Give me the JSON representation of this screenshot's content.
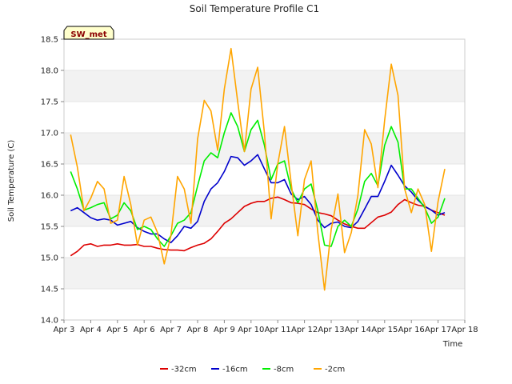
{
  "chart_data": {
    "type": "line",
    "title": "Soil Temperature Profile C1",
    "xlabel": "Time",
    "ylabel": "Soil Temperature (C)",
    "badge": "SW_met",
    "xlim": [
      3,
      18
    ],
    "ylim": [
      14.0,
      18.5
    ],
    "x_ticks": [
      3,
      4,
      5,
      6,
      7,
      8,
      9,
      10,
      11,
      12,
      13,
      14,
      15,
      16,
      17,
      18
    ],
    "x_tick_labels": [
      "Apr 3",
      "Apr 4",
      "Apr 5",
      "Apr 6",
      "Apr 7",
      "Apr 8",
      "Apr 9",
      "Apr 10",
      "Apr 11",
      "Apr 12",
      "Apr 13",
      "Apr 14",
      "Apr 15",
      "Apr 16",
      "Apr 17",
      "Apr 18"
    ],
    "y_ticks": [
      14.0,
      14.5,
      15.0,
      15.5,
      16.0,
      16.5,
      17.0,
      17.5,
      18.0,
      18.5
    ],
    "y_tick_labels": [
      "14.0",
      "14.5",
      "15.0",
      "15.5",
      "16.0",
      "16.5",
      "17.0",
      "17.5",
      "18.0",
      "18.5"
    ],
    "grid": true,
    "legend_position": "bottom",
    "series": [
      {
        "name": "-32cm",
        "color": "#dd0000",
        "points": [
          [
            3.25,
            15.03
          ],
          [
            3.5,
            15.1
          ],
          [
            3.75,
            15.2
          ],
          [
            4.0,
            15.22
          ],
          [
            4.25,
            15.18
          ],
          [
            4.5,
            15.2
          ],
          [
            4.75,
            15.2
          ],
          [
            5.0,
            15.22
          ],
          [
            5.25,
            15.2
          ],
          [
            5.5,
            15.2
          ],
          [
            5.75,
            15.21
          ],
          [
            6.0,
            15.18
          ],
          [
            6.25,
            15.18
          ],
          [
            6.5,
            15.15
          ],
          [
            6.75,
            15.13
          ],
          [
            7.0,
            15.12
          ],
          [
            7.25,
            15.12
          ],
          [
            7.5,
            15.11
          ],
          [
            7.75,
            15.16
          ],
          [
            8.0,
            15.2
          ],
          [
            8.25,
            15.23
          ],
          [
            8.5,
            15.3
          ],
          [
            8.75,
            15.42
          ],
          [
            9.0,
            15.55
          ],
          [
            9.25,
            15.62
          ],
          [
            9.5,
            15.72
          ],
          [
            9.75,
            15.82
          ],
          [
            10.0,
            15.87
          ],
          [
            10.25,
            15.9
          ],
          [
            10.5,
            15.9
          ],
          [
            10.75,
            15.95
          ],
          [
            11.0,
            15.97
          ],
          [
            11.25,
            15.93
          ],
          [
            11.5,
            15.88
          ],
          [
            11.75,
            15.87
          ],
          [
            12.0,
            15.85
          ],
          [
            12.25,
            15.78
          ],
          [
            12.5,
            15.72
          ],
          [
            12.75,
            15.7
          ],
          [
            13.0,
            15.67
          ],
          [
            13.25,
            15.6
          ],
          [
            13.5,
            15.54
          ],
          [
            13.75,
            15.5
          ],
          [
            14.0,
            15.47
          ],
          [
            14.25,
            15.47
          ],
          [
            14.5,
            15.56
          ],
          [
            14.75,
            15.65
          ],
          [
            15.0,
            15.68
          ],
          [
            15.25,
            15.73
          ],
          [
            15.5,
            15.85
          ],
          [
            15.75,
            15.93
          ],
          [
            16.0,
            15.88
          ],
          [
            16.25,
            15.84
          ],
          [
            16.5,
            15.82
          ],
          [
            16.75,
            15.76
          ],
          [
            17.0,
            15.72
          ],
          [
            17.25,
            15.68
          ]
        ]
      },
      {
        "name": "-16cm",
        "color": "#0000cc",
        "points": [
          [
            3.25,
            15.75
          ],
          [
            3.5,
            15.8
          ],
          [
            3.75,
            15.72
          ],
          [
            4.0,
            15.64
          ],
          [
            4.25,
            15.6
          ],
          [
            4.5,
            15.62
          ],
          [
            4.75,
            15.6
          ],
          [
            5.0,
            15.52
          ],
          [
            5.25,
            15.55
          ],
          [
            5.5,
            15.58
          ],
          [
            5.75,
            15.48
          ],
          [
            6.0,
            15.42
          ],
          [
            6.25,
            15.38
          ],
          [
            6.5,
            15.38
          ],
          [
            6.75,
            15.3
          ],
          [
            7.0,
            15.24
          ],
          [
            7.25,
            15.35
          ],
          [
            7.5,
            15.5
          ],
          [
            7.75,
            15.47
          ],
          [
            8.0,
            15.58
          ],
          [
            8.25,
            15.9
          ],
          [
            8.5,
            16.1
          ],
          [
            8.75,
            16.2
          ],
          [
            9.0,
            16.38
          ],
          [
            9.25,
            16.62
          ],
          [
            9.5,
            16.6
          ],
          [
            9.75,
            16.48
          ],
          [
            10.0,
            16.55
          ],
          [
            10.25,
            16.65
          ],
          [
            10.5,
            16.42
          ],
          [
            10.75,
            16.2
          ],
          [
            11.0,
            16.2
          ],
          [
            11.25,
            16.25
          ],
          [
            11.5,
            16.02
          ],
          [
            11.75,
            15.93
          ],
          [
            12.0,
            15.98
          ],
          [
            12.25,
            15.85
          ],
          [
            12.5,
            15.6
          ],
          [
            12.75,
            15.48
          ],
          [
            13.0,
            15.55
          ],
          [
            13.25,
            15.57
          ],
          [
            13.5,
            15.5
          ],
          [
            13.75,
            15.48
          ],
          [
            14.0,
            15.58
          ],
          [
            14.25,
            15.78
          ],
          [
            14.5,
            15.98
          ],
          [
            14.75,
            15.98
          ],
          [
            15.0,
            16.22
          ],
          [
            15.25,
            16.48
          ],
          [
            15.5,
            16.32
          ],
          [
            15.75,
            16.15
          ],
          [
            16.0,
            16.05
          ],
          [
            16.25,
            15.92
          ],
          [
            16.5,
            15.82
          ],
          [
            16.75,
            15.76
          ],
          [
            17.0,
            15.68
          ],
          [
            17.25,
            15.72
          ]
        ]
      },
      {
        "name": "-8cm",
        "color": "#00ee00",
        "points": [
          [
            3.25,
            16.38
          ],
          [
            3.5,
            16.1
          ],
          [
            3.75,
            15.76
          ],
          [
            4.0,
            15.8
          ],
          [
            4.25,
            15.85
          ],
          [
            4.5,
            15.88
          ],
          [
            4.75,
            15.62
          ],
          [
            5.0,
            15.68
          ],
          [
            5.25,
            15.88
          ],
          [
            5.5,
            15.75
          ],
          [
            5.75,
            15.45
          ],
          [
            6.0,
            15.5
          ],
          [
            6.25,
            15.45
          ],
          [
            6.5,
            15.3
          ],
          [
            6.75,
            15.18
          ],
          [
            7.0,
            15.35
          ],
          [
            7.25,
            15.55
          ],
          [
            7.5,
            15.6
          ],
          [
            7.75,
            15.72
          ],
          [
            8.0,
            16.15
          ],
          [
            8.25,
            16.55
          ],
          [
            8.5,
            16.68
          ],
          [
            8.75,
            16.6
          ],
          [
            9.0,
            17.0
          ],
          [
            9.25,
            17.32
          ],
          [
            9.5,
            17.1
          ],
          [
            9.75,
            16.7
          ],
          [
            10.0,
            17.05
          ],
          [
            10.25,
            17.2
          ],
          [
            10.5,
            16.8
          ],
          [
            10.75,
            16.25
          ],
          [
            11.0,
            16.5
          ],
          [
            11.25,
            16.55
          ],
          [
            11.5,
            16.1
          ],
          [
            11.75,
            15.88
          ],
          [
            12.0,
            16.1
          ],
          [
            12.25,
            16.18
          ],
          [
            12.5,
            15.75
          ],
          [
            12.75,
            15.2
          ],
          [
            13.0,
            15.18
          ],
          [
            13.25,
            15.5
          ],
          [
            13.5,
            15.6
          ],
          [
            13.75,
            15.5
          ],
          [
            14.0,
            15.78
          ],
          [
            14.25,
            16.22
          ],
          [
            14.5,
            16.35
          ],
          [
            14.75,
            16.15
          ],
          [
            15.0,
            16.8
          ],
          [
            15.25,
            17.1
          ],
          [
            15.5,
            16.85
          ],
          [
            15.75,
            16.1
          ],
          [
            16.0,
            16.1
          ],
          [
            16.25,
            15.95
          ],
          [
            16.5,
            15.8
          ],
          [
            16.75,
            15.55
          ],
          [
            17.0,
            15.65
          ],
          [
            17.25,
            15.95
          ]
        ]
      },
      {
        "name": "-2cm",
        "color": "#ffa500",
        "points": [
          [
            3.25,
            16.97
          ],
          [
            3.5,
            16.45
          ],
          [
            3.75,
            15.75
          ],
          [
            4.0,
            15.95
          ],
          [
            4.25,
            16.22
          ],
          [
            4.5,
            16.1
          ],
          [
            4.75,
            15.55
          ],
          [
            5.0,
            15.6
          ],
          [
            5.25,
            16.3
          ],
          [
            5.5,
            15.85
          ],
          [
            5.75,
            15.2
          ],
          [
            6.0,
            15.6
          ],
          [
            6.25,
            15.65
          ],
          [
            6.5,
            15.4
          ],
          [
            6.75,
            14.9
          ],
          [
            7.0,
            15.35
          ],
          [
            7.25,
            16.3
          ],
          [
            7.5,
            16.1
          ],
          [
            7.75,
            15.55
          ],
          [
            8.0,
            16.9
          ],
          [
            8.25,
            17.52
          ],
          [
            8.5,
            17.35
          ],
          [
            8.75,
            16.72
          ],
          [
            9.0,
            17.7
          ],
          [
            9.25,
            18.35
          ],
          [
            9.5,
            17.5
          ],
          [
            9.75,
            16.7
          ],
          [
            10.0,
            17.7
          ],
          [
            10.25,
            18.05
          ],
          [
            10.5,
            17.0
          ],
          [
            10.75,
            15.62
          ],
          [
            11.0,
            16.5
          ],
          [
            11.25,
            17.1
          ],
          [
            11.5,
            16.2
          ],
          [
            11.75,
            15.35
          ],
          [
            12.0,
            16.25
          ],
          [
            12.25,
            16.55
          ],
          [
            12.5,
            15.4
          ],
          [
            12.75,
            14.48
          ],
          [
            13.0,
            15.45
          ],
          [
            13.25,
            16.02
          ],
          [
            13.5,
            15.08
          ],
          [
            13.75,
            15.4
          ],
          [
            14.0,
            16.0
          ],
          [
            14.25,
            17.05
          ],
          [
            14.5,
            16.82
          ],
          [
            14.75,
            16.12
          ],
          [
            15.0,
            17.2
          ],
          [
            15.25,
            18.1
          ],
          [
            15.5,
            17.6
          ],
          [
            15.75,
            16.1
          ],
          [
            16.0,
            15.72
          ],
          [
            16.25,
            16.1
          ],
          [
            16.5,
            15.85
          ],
          [
            16.75,
            15.1
          ],
          [
            17.0,
            15.9
          ],
          [
            17.25,
            16.42
          ]
        ]
      }
    ]
  }
}
